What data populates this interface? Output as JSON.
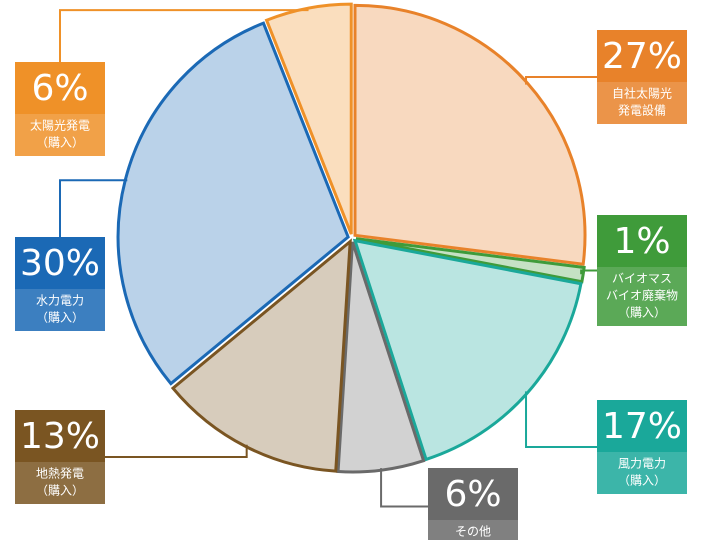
{
  "chart_data": {
    "type": "pie",
    "categories": [
      [
        "自社太陽光",
        "発電設備"
      ],
      [
        "バイオマス",
        "バイオ廃棄物",
        "（購入）"
      ],
      [
        "風力電力",
        "（購入）"
      ],
      [
        "その他"
      ],
      [
        "地熱発電",
        "（購入）"
      ],
      [
        "水力電力",
        "（購入）"
      ],
      [
        "太陽光発電",
        "（購入）"
      ]
    ],
    "values": [
      27,
      1,
      17,
      6,
      13,
      30,
      6
    ],
    "value_labels": [
      "27%",
      "1%",
      "17%",
      "6%",
      "13%",
      "30%",
      "6%"
    ],
    "colors": [
      "#e8822a",
      "#3f9b3a",
      "#1aa89a",
      "#6a6a6a",
      "#7a5522",
      "#1b69b5",
      "#ef9128"
    ]
  }
}
